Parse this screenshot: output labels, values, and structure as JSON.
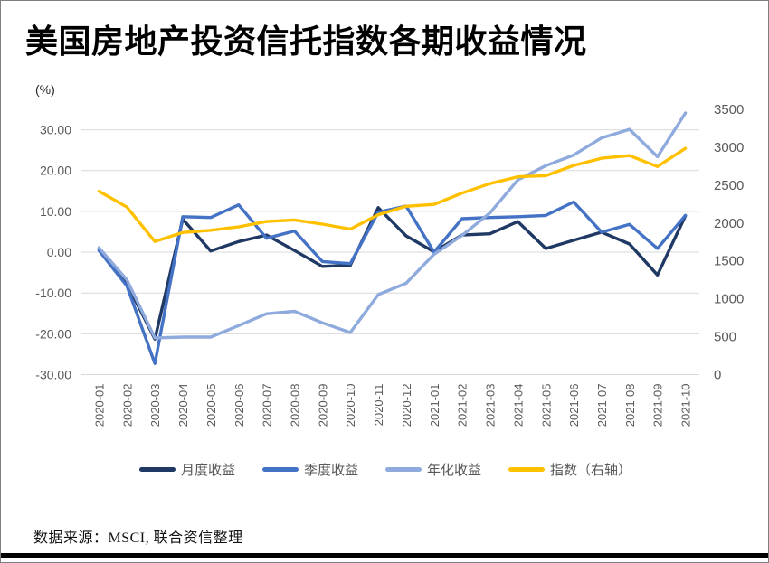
{
  "title": "美国房地产投资信托指数各期收益情况",
  "axis_unit_label": "(%)",
  "source_note": "数据来源：MSCI, 联合资信整理",
  "colors": {
    "monthly": "#1F3864",
    "quarterly": "#4472C4",
    "annualized": "#8FAADC",
    "index": "#FFC000",
    "gridline": "#D9D9D9",
    "axis_text": "#595959",
    "legend_text": "#595959"
  },
  "chart_data": {
    "type": "line",
    "title": "美国房地产投资信托指数各期收益情况",
    "grid": "horizontal",
    "legend_position": "bottom",
    "categories": [
      "2020-01",
      "2020-02",
      "2020-03",
      "2020-04",
      "2020-05",
      "2020-06",
      "2020-07",
      "2020-08",
      "2020-09",
      "2020-10",
      "2020-11",
      "2020-12",
      "2021-01",
      "2021-02",
      "2021-03",
      "2021-04",
      "2021-05",
      "2021-06",
      "2021-07",
      "2021-08",
      "2021-09",
      "2021-10"
    ],
    "left_axis": {
      "unit": "%",
      "min": -30,
      "max": 35,
      "tick_labels": [
        "30.00",
        "20.00",
        "10.00",
        "0.00",
        "-10.00",
        "-20.00",
        "-30.00"
      ]
    },
    "right_axis": {
      "min": 0,
      "max": 3500,
      "tick_labels": [
        "3500",
        "3000",
        "2500",
        "2000",
        "1500",
        "1000",
        "500",
        "0"
      ]
    },
    "series": [
      {
        "key": "monthly-returns",
        "name": "月度收益",
        "axis": "left",
        "color": "#1F3864",
        "values": [
          0.8,
          -7.7,
          -21.3,
          8.1,
          0.3,
          2.6,
          4.2,
          0.4,
          -3.5,
          -3.2,
          10.9,
          4.0,
          0.1,
          4.2,
          4.5,
          7.5,
          0.9,
          2.9,
          4.9,
          2.0,
          -5.6,
          8.9
        ]
      },
      {
        "key": "quarterly-returns",
        "name": "季度收益",
        "axis": "left",
        "color": "#4472C4",
        "values": [
          0.4,
          -8.3,
          -27.3,
          8.7,
          8.5,
          11.6,
          3.4,
          5.2,
          -2.3,
          -2.8,
          9.8,
          11.3,
          0.0,
          8.2,
          8.5,
          8.7,
          9.0,
          12.3,
          4.9,
          6.8,
          0.9,
          9.0
        ]
      },
      {
        "key": "annualized-returns",
        "name": "年化收益",
        "axis": "left",
        "color": "#8FAADC",
        "values": [
          1.1,
          -6.8,
          -21.0,
          -20.8,
          -20.8,
          -18.0,
          -15.1,
          -14.5,
          -17.3,
          -19.7,
          -10.4,
          -7.6,
          -0.5,
          4.1,
          9.6,
          17.7,
          21.2,
          23.8,
          28.0,
          30.1,
          23.4,
          34.1
        ]
      },
      {
        "key": "index-right-axis",
        "name": "指数（右轴）",
        "axis": "right",
        "color": "#FFC000",
        "values": [
          2420,
          2210,
          1755,
          1875,
          1905,
          1950,
          2020,
          2040,
          1985,
          1920,
          2110,
          2220,
          2245,
          2395,
          2520,
          2610,
          2625,
          2760,
          2855,
          2890,
          2745,
          2985
        ]
      }
    ]
  }
}
